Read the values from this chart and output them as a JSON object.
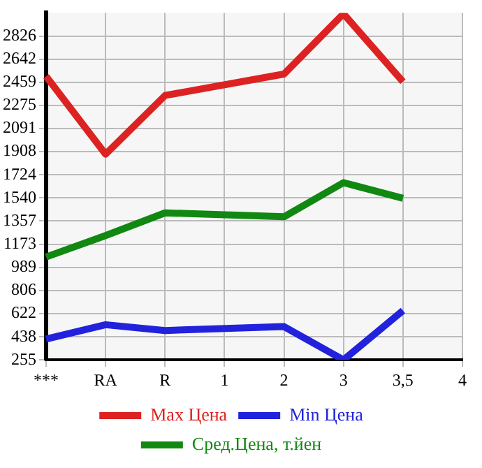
{
  "chart_data": {
    "type": "line",
    "categories": [
      "***",
      "RA",
      "R",
      "1",
      "2",
      "3",
      "3,5",
      "4"
    ],
    "series": [
      {
        "name": "Max Цена",
        "color": "#dd2222",
        "values": [
          2506,
          1888,
          2354,
          null,
          2524,
          3003,
          2463,
          null
        ]
      },
      {
        "name": "Min Цена",
        "color": "#2222dd",
        "values": [
          420,
          534,
          488,
          null,
          519,
          255,
          646,
          null
        ]
      },
      {
        "name": "Сред.Цена, т.йен",
        "color": "#118811",
        "values": [
          1072,
          1242,
          1422,
          null,
          1391,
          1662,
          1538,
          null
        ]
      }
    ],
    "ylim": [
      255,
      3010
    ],
    "yticks": [
      255,
      438,
      622,
      806,
      989,
      1173,
      1357,
      1540,
      1724,
      1908,
      2091,
      2275,
      2459,
      2642,
      2826
    ],
    "grid": true,
    "legend": "bottom",
    "marker": "none",
    "line_style": "solid"
  }
}
